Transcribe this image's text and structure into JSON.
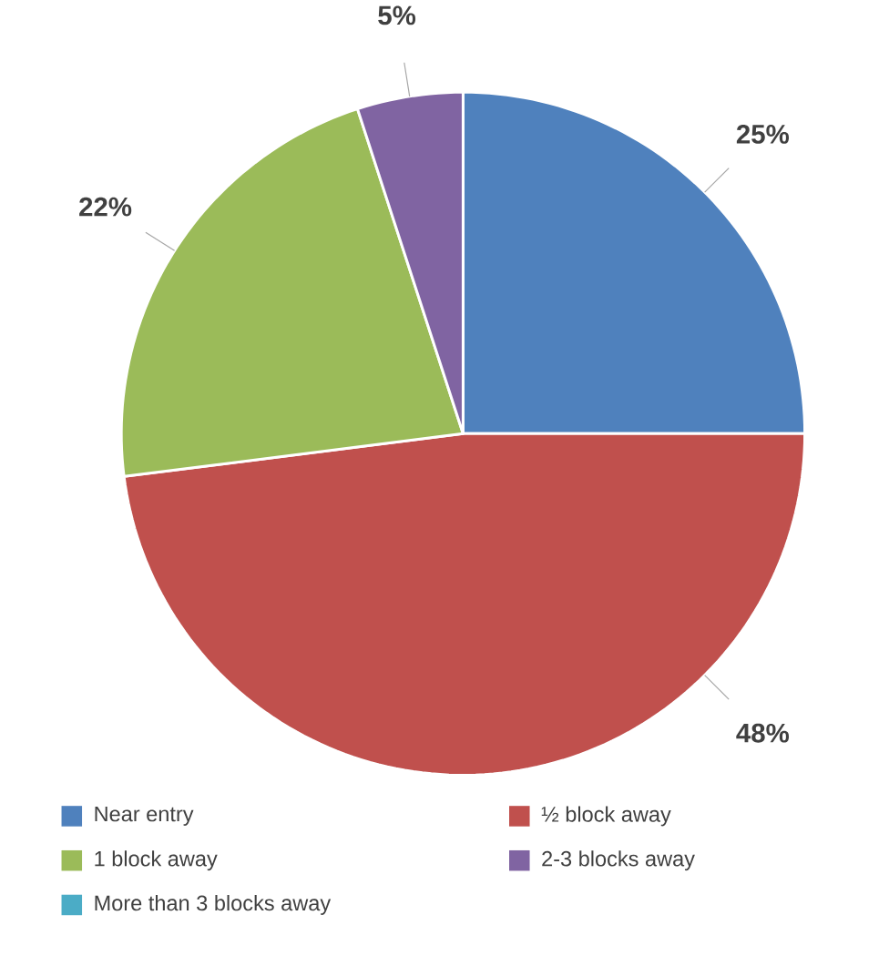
{
  "chart_data": {
    "type": "pie",
    "categories": [
      "Near entry",
      "½ block away",
      "1 block away",
      "2-3 blocks away",
      "More than 3 blocks away"
    ],
    "values": [
      25,
      48,
      22,
      5,
      0
    ],
    "colors": [
      "#4f81bd",
      "#c0504d",
      "#9bbb59",
      "#8064a2",
      "#4bacc6"
    ],
    "value_labels": [
      "25%",
      "48%",
      "22%",
      "5%",
      null
    ],
    "legend": "bottom"
  }
}
